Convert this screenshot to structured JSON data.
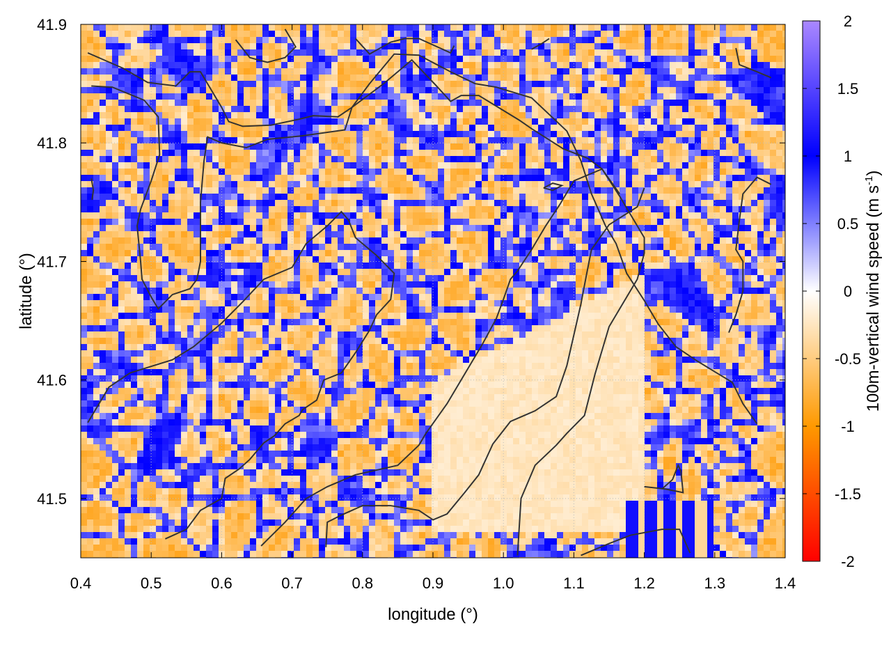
{
  "chart_data": {
    "type": "heatmap",
    "title": "",
    "xlabel": "longitude (°)",
    "ylabel": "latitude (°)",
    "xlim": [
      0.4,
      1.4
    ],
    "ylim": [
      41.45,
      41.9
    ],
    "x_ticks": [
      {
        "value": 0.4,
        "label": "0.4"
      },
      {
        "value": 0.5,
        "label": "0.5"
      },
      {
        "value": 0.6,
        "label": "0.6"
      },
      {
        "value": 0.7,
        "label": "0.7"
      },
      {
        "value": 0.8,
        "label": "0.8"
      },
      {
        "value": 0.9,
        "label": "0.9"
      },
      {
        "value": 1.0,
        "label": "1.0"
      },
      {
        "value": 1.1,
        "label": "1.1"
      },
      {
        "value": 1.2,
        "label": "1.2"
      },
      {
        "value": 1.3,
        "label": "1.3"
      },
      {
        "value": 1.4,
        "label": "1.4"
      }
    ],
    "y_ticks": [
      {
        "value": 41.5,
        "label": "41.5"
      },
      {
        "value": 41.6,
        "label": "41.6"
      },
      {
        "value": 41.7,
        "label": "41.7"
      },
      {
        "value": 41.8,
        "label": "41.8"
      },
      {
        "value": 41.9,
        "label": "41.9"
      }
    ],
    "colorbar": {
      "label": "100m-vertical wind speed (m s",
      "label_superscript": "-1",
      "label_close": ")",
      "range": [
        -2,
        2
      ],
      "ticks": [
        {
          "value": 2,
          "label": "2"
        },
        {
          "value": 1.5,
          "label": "1.5"
        },
        {
          "value": 1,
          "label": "1"
        },
        {
          "value": 0.5,
          "label": "0.5"
        },
        {
          "value": 0,
          "label": "0"
        },
        {
          "value": -0.5,
          "label": "-0.5"
        },
        {
          "value": -1,
          "label": "-1"
        },
        {
          "value": -1.5,
          "label": "-1.5"
        },
        {
          "value": -2,
          "label": "-2"
        }
      ],
      "stops": [
        {
          "value": -2,
          "color": "#ff0000"
        },
        {
          "value": -1,
          "color": "#ff9900"
        },
        {
          "value": 0,
          "color": "#ffffff"
        },
        {
          "value": 1,
          "color": "#0000ff"
        },
        {
          "value": 2,
          "color": "#aa88ff"
        }
      ]
    },
    "grid": true,
    "contour_color": "#333333",
    "contours": [
      [
        [
          0.415,
          41.848
        ],
        [
          0.445,
          41.847
        ],
        [
          0.49,
          41.836
        ],
        [
          0.51,
          41.822
        ],
        [
          0.512,
          41.79
        ],
        [
          0.5,
          41.768
        ],
        [
          0.485,
          41.744
        ],
        [
          0.48,
          41.73
        ],
        [
          0.485,
          41.7
        ],
        [
          0.487,
          41.685
        ],
        [
          0.5,
          41.67
        ],
        [
          0.51,
          41.66
        ],
        [
          0.52,
          41.666
        ],
        [
          0.53,
          41.672
        ],
        [
          0.555,
          41.677
        ],
        [
          0.565,
          41.685
        ],
        [
          0.57,
          41.7
        ],
        [
          0.57,
          41.75
        ],
        [
          0.575,
          41.785
        ],
        [
          0.58,
          41.805
        ],
        [
          0.6,
          41.8
        ],
        [
          0.635,
          41.796
        ],
        [
          0.665,
          41.803
        ],
        [
          0.715,
          41.806
        ],
        [
          0.775,
          41.811
        ],
        [
          0.785,
          41.83
        ],
        [
          0.83,
          41.85
        ],
        [
          0.87,
          41.87
        ],
        [
          0.905,
          41.848
        ],
        [
          0.925,
          41.835
        ],
        [
          0.94,
          41.84
        ],
        [
          0.965,
          41.84
        ],
        [
          0.99,
          41.831
        ],
        [
          1.023,
          41.819
        ],
        [
          1.04,
          41.812
        ],
        [
          1.085,
          41.795
        ],
        [
          1.12,
          41.787
        ],
        [
          1.14,
          41.778
        ],
        [
          1.165,
          41.755
        ],
        [
          1.18,
          41.74
        ],
        [
          1.2,
          41.72
        ],
        [
          1.2,
          41.707
        ],
        [
          1.19,
          41.685
        ],
        [
          1.165,
          41.66
        ],
        [
          1.15,
          41.645
        ],
        [
          1.14,
          41.625
        ],
        [
          1.13,
          41.605
        ],
        [
          1.115,
          41.57
        ],
        [
          1.09,
          41.555
        ],
        [
          1.075,
          41.545
        ],
        [
          1.045,
          41.528
        ],
        [
          1.025,
          41.5
        ],
        [
          1.02,
          41.452
        ]
      ],
      [
        [
          0.41,
          41.876
        ],
        [
          0.46,
          41.863
        ],
        [
          0.495,
          41.851
        ],
        [
          0.535,
          41.848
        ],
        [
          0.555,
          41.86
        ],
        [
          0.57,
          41.86
        ],
        [
          0.6,
          41.83
        ],
        [
          0.61,
          41.818
        ],
        [
          0.63,
          41.814
        ],
        [
          0.67,
          41.815
        ],
        [
          0.71,
          41.82
        ],
        [
          0.73,
          41.823
        ],
        [
          0.765,
          41.822
        ],
        [
          0.785,
          41.83
        ],
        [
          0.81,
          41.85
        ],
        [
          0.845,
          41.875
        ],
        [
          0.88,
          41.874
        ],
        [
          0.925,
          41.86
        ],
        [
          0.96,
          41.85
        ],
        [
          0.99,
          41.847
        ],
        [
          1.04,
          41.838
        ],
        [
          1.09,
          41.81
        ],
        [
          1.11,
          41.785
        ],
        [
          1.125,
          41.757
        ],
        [
          1.145,
          41.73
        ],
        [
          1.16,
          41.715
        ],
        [
          1.175,
          41.69
        ],
        [
          1.2,
          41.667
        ],
        [
          1.22,
          41.647
        ],
        [
          1.245,
          41.628
        ],
        [
          1.275,
          41.616
        ],
        [
          1.3,
          41.607
        ],
        [
          1.325,
          41.598
        ],
        [
          1.34,
          41.58
        ],
        [
          1.36,
          41.563
        ]
      ],
      [
        [
          0.52,
          41.466
        ],
        [
          0.55,
          41.474
        ],
        [
          0.57,
          41.49
        ],
        [
          0.6,
          41.5
        ],
        [
          0.605,
          41.517
        ],
        [
          0.625,
          41.525
        ],
        [
          0.64,
          41.533
        ],
        [
          0.66,
          41.547
        ],
        [
          0.675,
          41.553
        ],
        [
          0.69,
          41.563
        ],
        [
          0.71,
          41.57
        ],
        [
          0.715,
          41.575
        ],
        [
          0.735,
          41.583
        ],
        [
          0.745,
          41.6
        ],
        [
          0.77,
          41.606
        ],
        [
          0.79,
          41.623
        ],
        [
          0.81,
          41.642
        ],
        [
          0.82,
          41.655
        ],
        [
          0.84,
          41.668
        ],
        [
          0.845,
          41.69
        ],
        [
          0.82,
          41.705
        ],
        [
          0.79,
          41.72
        ],
        [
          0.78,
          41.735
        ],
        [
          0.77,
          41.742
        ],
        [
          0.75,
          41.73
        ],
        [
          0.72,
          41.715
        ],
        [
          0.7,
          41.695
        ],
        [
          0.66,
          41.685
        ],
        [
          0.63,
          41.666
        ],
        [
          0.6,
          41.648
        ],
        [
          0.56,
          41.628
        ],
        [
          0.53,
          41.617
        ],
        [
          0.47,
          41.606
        ],
        [
          0.44,
          41.594
        ],
        [
          0.41,
          41.564
        ]
      ],
      [
        [
          0.656,
          41.46
        ],
        [
          0.69,
          41.48
        ],
        [
          0.72,
          41.5
        ],
        [
          0.75,
          41.51
        ],
        [
          0.79,
          41.52
        ],
        [
          0.85,
          41.528
        ],
        [
          0.88,
          41.545
        ],
        [
          0.89,
          41.555
        ],
        [
          0.92,
          41.58
        ],
        [
          0.95,
          41.61
        ],
        [
          0.97,
          41.63
        ],
        [
          0.99,
          41.652
        ],
        [
          1.0,
          41.668
        ],
        [
          1.01,
          41.685
        ],
        [
          1.02,
          41.692
        ],
        [
          1.04,
          41.71
        ],
        [
          1.06,
          41.73
        ],
        [
          1.08,
          41.748
        ],
        [
          1.1,
          41.768
        ],
        [
          1.14,
          41.778
        ],
        [
          1.165,
          41.757
        ]
      ],
      [
        [
          0.748,
          41.459
        ],
        [
          0.75,
          41.48
        ],
        [
          0.77,
          41.486
        ],
        [
          0.8,
          41.494
        ],
        [
          0.84,
          41.494
        ],
        [
          0.88,
          41.49
        ],
        [
          0.9,
          41.482
        ],
        [
          0.92,
          41.487
        ],
        [
          0.945,
          41.505
        ],
        [
          0.965,
          41.52
        ],
        [
          0.985,
          41.546
        ],
        [
          1.01,
          41.565
        ],
        [
          1.045,
          41.574
        ],
        [
          1.075,
          41.586
        ],
        [
          1.09,
          41.612
        ],
        [
          1.1,
          41.638
        ],
        [
          1.11,
          41.664
        ],
        [
          1.118,
          41.689
        ],
        [
          1.125,
          41.71
        ],
        [
          1.15,
          41.731
        ],
        [
          1.19,
          41.746
        ],
        [
          1.2,
          41.762
        ]
      ],
      [
        [
          1.11,
          41.452
        ],
        [
          1.15,
          41.462
        ],
        [
          1.18,
          41.469
        ],
        [
          1.225,
          41.474
        ],
        [
          1.25,
          41.474
        ],
        [
          1.265,
          41.454
        ]
      ],
      [
        [
          1.2,
          41.51
        ],
        [
          1.23,
          41.508
        ],
        [
          1.255,
          41.505
        ],
        [
          1.252,
          41.523
        ],
        [
          1.248,
          41.528
        ],
        [
          1.24,
          41.516
        ],
        [
          1.225,
          41.508
        ]
      ],
      [
        [
          0.62,
          41.887
        ],
        [
          0.64,
          41.872
        ],
        [
          0.665,
          41.868
        ],
        [
          0.69,
          41.872
        ],
        [
          0.705,
          41.881
        ],
        [
          0.69,
          41.896
        ]
      ],
      [
        [
          0.79,
          41.888
        ],
        [
          0.81,
          41.875
        ],
        [
          0.84,
          41.885
        ],
        [
          0.86,
          41.888
        ],
        [
          0.88,
          41.888
        ],
        [
          0.925,
          41.876
        ],
        [
          0.93,
          41.882
        ]
      ],
      [
        [
          1.04,
          41.879
        ],
        [
          1.055,
          41.884
        ],
        [
          1.065,
          41.888
        ]
      ],
      [
        [
          1.33,
          41.88
        ],
        [
          1.335,
          41.866
        ],
        [
          1.36,
          41.86
        ],
        [
          1.38,
          41.855
        ]
      ],
      [
        [
          1.38,
          41.765
        ],
        [
          1.36,
          41.771
        ],
        [
          1.34,
          41.757
        ],
        [
          1.335,
          41.735
        ],
        [
          1.33,
          41.71
        ],
        [
          1.34,
          41.7
        ],
        [
          1.34,
          41.675
        ],
        [
          1.33,
          41.655
        ],
        [
          1.32,
          41.64
        ]
      ],
      [
        [
          0.415,
          41.77
        ],
        [
          0.418,
          41.76
        ],
        [
          0.416,
          41.752
        ]
      ],
      [
        [
          1.057,
          41.762
        ],
        [
          1.07,
          41.76
        ],
        [
          1.083,
          41.764
        ],
        [
          1.07,
          41.766
        ],
        [
          1.057,
          41.762
        ]
      ]
    ],
    "field": "Mesoscale vertical wind speed field: cellular blue (updraft) walls around orange (downdraft) cells; smooth light-orange region south-east over central valley; bands of blue/orange in lower-right corner."
  }
}
